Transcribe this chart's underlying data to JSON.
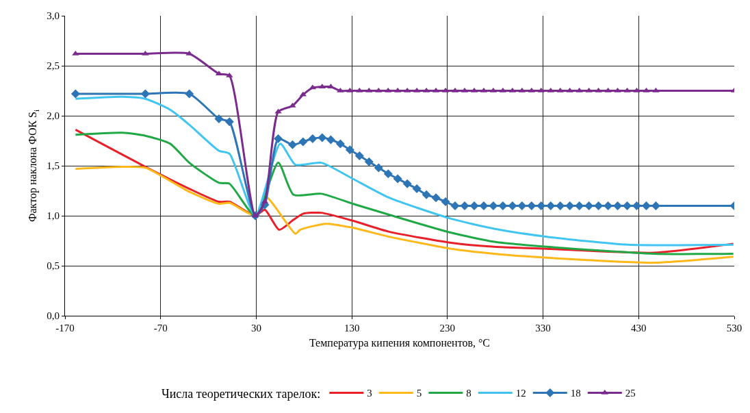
{
  "chart_data": {
    "type": "line",
    "xlabel": "Температура кипения компонентов, °С",
    "ylabel": "Фактор наклона ФОК S$_{i}$",
    "legend_title": "Числа теоретических тарелок:",
    "xlim": [
      -170,
      530
    ],
    "xticks": [
      -170,
      -70,
      30,
      130,
      230,
      330,
      430,
      530
    ],
    "ylim": [
      0,
      3
    ],
    "yticks": [
      {
        "value": 0,
        "label": "0,0"
      },
      {
        "value": 0.5,
        "label": "0,5"
      },
      {
        "value": 1,
        "label": "1,0"
      },
      {
        "value": 1.5,
        "label": "1,5"
      },
      {
        "value": 2,
        "label": "2,0"
      },
      {
        "value": 2.5,
        "label": "2,5"
      },
      {
        "value": 3,
        "label": "3,0"
      }
    ],
    "grid": true,
    "legend": "bottom",
    "line_style": "solid",
    "series": [
      {
        "name": "3",
        "color": "#e8202a",
        "marker": "none",
        "x": [
          -159,
          -86,
          -40,
          -9,
          2,
          29,
          39,
          54,
          69,
          79,
          98,
          131,
          169,
          234,
          279,
          334,
          446,
          529
        ],
        "values": [
          1.86,
          1.49,
          1.27,
          1.14,
          1.14,
          1.0,
          1.06,
          0.86,
          0.96,
          1.02,
          1.03,
          0.95,
          0.84,
          0.73,
          0.69,
          0.67,
          0.63,
          0.72
        ]
      },
      {
        "name": "5",
        "color": "#ffb819",
        "marker": "none",
        "x": [
          -159,
          -110,
          -86,
          -40,
          -9,
          2,
          29,
          40,
          71,
          76,
          103,
          131,
          169,
          234,
          279,
          334,
          446,
          529
        ],
        "values": [
          1.47,
          1.49,
          1.48,
          1.24,
          1.12,
          1.13,
          1.0,
          1.19,
          0.82,
          0.86,
          0.92,
          0.88,
          0.79,
          0.67,
          0.62,
          0.58,
          0.53,
          0.59
        ]
      },
      {
        "name": "8",
        "color": "#21a846",
        "marker": "none",
        "x": [
          -159,
          -110,
          -86,
          -60,
          -40,
          -9,
          2,
          29,
          53,
          69,
          98,
          131,
          169,
          234,
          279,
          334,
          446,
          529
        ],
        "values": [
          1.81,
          1.83,
          1.8,
          1.72,
          1.53,
          1.33,
          1.32,
          1.0,
          1.53,
          1.21,
          1.22,
          1.12,
          1.01,
          0.83,
          0.74,
          0.69,
          0.62,
          0.62
        ]
      },
      {
        "name": "12",
        "color": "#40c4f0",
        "marker": "none",
        "x": [
          -159,
          -110,
          -86,
          -60,
          -40,
          -9,
          2,
          29,
          55,
          71,
          98,
          131,
          169,
          234,
          279,
          334,
          419,
          529
        ],
        "values": [
          2.17,
          2.19,
          2.17,
          2.06,
          1.91,
          1.65,
          1.62,
          1.0,
          1.72,
          1.51,
          1.53,
          1.37,
          1.18,
          0.97,
          0.87,
          0.79,
          0.71,
          0.71
        ]
      },
      {
        "name": "18",
        "color": "#2e75b6",
        "marker": "diamond",
        "x": [
          -159,
          -86,
          -40,
          -9,
          2,
          29,
          39,
          53,
          68,
          79,
          89,
          99,
          108,
          118,
          128,
          138,
          148,
          158,
          168,
          178,
          188,
          198,
          208,
          218,
          228,
          238,
          248,
          258,
          268,
          278,
          288,
          298,
          308,
          318,
          328,
          338,
          348,
          358,
          368,
          378,
          388,
          398,
          408,
          418,
          428,
          438,
          448,
          530
        ],
        "values": [
          2.22,
          2.22,
          2.22,
          1.97,
          1.94,
          1.0,
          1.11,
          1.77,
          1.71,
          1.74,
          1.77,
          1.78,
          1.76,
          1.72,
          1.66,
          1.6,
          1.54,
          1.48,
          1.42,
          1.37,
          1.32,
          1.27,
          1.21,
          1.18,
          1.14,
          1.1,
          1.1,
          1.1,
          1.1,
          1.1,
          1.1,
          1.1,
          1.1,
          1.1,
          1.1,
          1.1,
          1.1,
          1.1,
          1.1,
          1.1,
          1.1,
          1.1,
          1.1,
          1.1,
          1.1,
          1.1,
          1.1,
          1.1
        ]
      },
      {
        "name": "25",
        "color": "#7b2a8e",
        "marker": "triangle",
        "x": [
          -159,
          -86,
          -40,
          -9,
          2,
          29,
          39,
          53,
          68,
          79,
          89,
          99,
          108,
          118,
          128,
          138,
          148,
          158,
          168,
          178,
          188,
          198,
          208,
          218,
          228,
          238,
          248,
          258,
          268,
          278,
          288,
          298,
          308,
          318,
          328,
          338,
          348,
          358,
          368,
          378,
          388,
          398,
          408,
          418,
          428,
          438,
          448,
          530
        ],
        "values": [
          2.62,
          2.62,
          2.62,
          2.42,
          2.4,
          1.0,
          1.14,
          2.04,
          2.1,
          2.21,
          2.28,
          2.29,
          2.29,
          2.25,
          2.25,
          2.25,
          2.25,
          2.25,
          2.25,
          2.25,
          2.25,
          2.25,
          2.25,
          2.25,
          2.25,
          2.25,
          2.25,
          2.25,
          2.25,
          2.25,
          2.25,
          2.25,
          2.25,
          2.25,
          2.25,
          2.25,
          2.25,
          2.25,
          2.25,
          2.25,
          2.25,
          2.25,
          2.25,
          2.25,
          2.25,
          2.25,
          2.25,
          2.25
        ]
      }
    ]
  }
}
